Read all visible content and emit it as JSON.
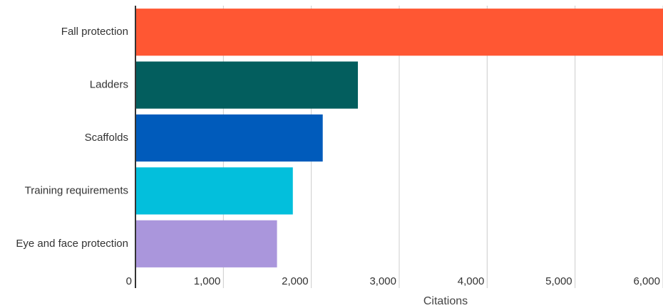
{
  "chart_data": {
    "type": "bar",
    "orientation": "horizontal",
    "categories": [
      "Fall protection",
      "Ladders",
      "Scaffolds",
      "Training requirements",
      "Eye and face protection"
    ],
    "values": [
      6010,
      2530,
      2130,
      1790,
      1610
    ],
    "colors": [
      "#FF5733",
      "#035E5E",
      "#005BBB",
      "#03BFDC",
      "#AA96DC"
    ],
    "xlabel": "Citations",
    "xlim": [
      0,
      6000
    ],
    "xticks": [
      0,
      1000,
      2000,
      3000,
      4000,
      5000,
      6000
    ],
    "xtick_labels": [
      "0",
      "1,000",
      "2,000",
      "3,000",
      "4,000",
      "5,000",
      "6,000"
    ],
    "grid": "vertical",
    "legend": "none"
  }
}
